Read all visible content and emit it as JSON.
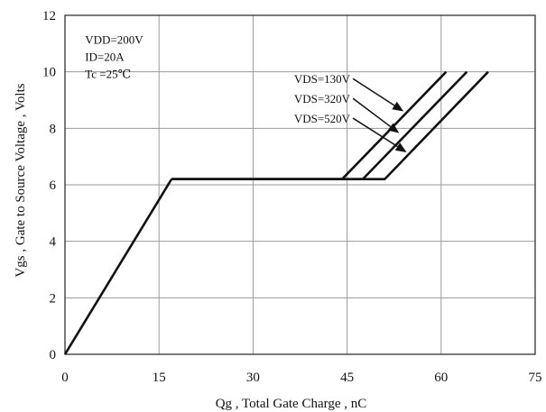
{
  "chart_data": {
    "type": "line",
    "xlabel": "Qg , Total Gate Charge , nC",
    "ylabel": "Vgs , Gate to Source Voltage , Volts",
    "xlim": [
      0,
      75
    ],
    "ylim": [
      0,
      12
    ],
    "x_ticks": [
      0,
      15,
      30,
      45,
      60,
      75
    ],
    "y_ticks": [
      0,
      2,
      4,
      6,
      8,
      10,
      12
    ],
    "grid": true,
    "conditions": [
      "VDD=200V",
      "ID=20A",
      "Tc =25℃"
    ],
    "shared_segment": {
      "x": [
        0,
        17
      ],
      "y": [
        0,
        6.2
      ]
    },
    "series": [
      {
        "name": "VDS=130V",
        "x": [
          17,
          44.2,
          60.8
        ],
        "y": [
          6.2,
          6.2,
          10
        ]
      },
      {
        "name": "VDS=320V",
        "x": [
          17,
          47.5,
          64.1
        ],
        "y": [
          6.2,
          6.2,
          10
        ]
      },
      {
        "name": "VDS=520V",
        "x": [
          17,
          51,
          67.5
        ],
        "y": [
          6.2,
          6.2,
          10
        ]
      }
    ],
    "annotations": [
      {
        "series": "VDS=130V",
        "label_pos": [
          45.5,
          9.6
        ],
        "arrow_to": [
          54.0,
          8.6
        ]
      },
      {
        "series": "VDS=320V",
        "label_pos": [
          45.5,
          8.9
        ],
        "arrow_to": [
          53.3,
          7.83
        ]
      },
      {
        "series": "VDS=520V",
        "label_pos": [
          45.5,
          8.2
        ],
        "arrow_to": [
          54.5,
          7.15
        ]
      }
    ]
  }
}
